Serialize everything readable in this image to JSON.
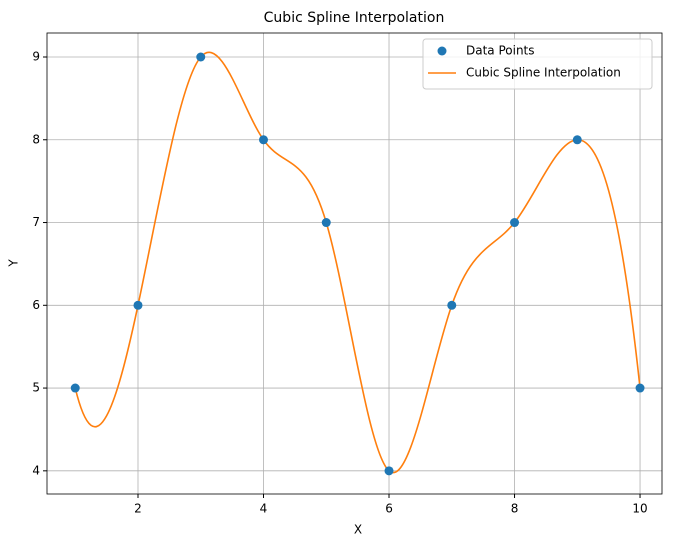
{
  "chart_data": {
    "type": "line",
    "title": "Cubic Spline Interpolation",
    "x_label": "X",
    "y_label": "Y",
    "x": [
      1,
      2,
      3,
      4,
      5,
      6,
      7,
      8,
      9,
      10
    ],
    "series": [
      {
        "name": "Data Points",
        "type": "scatter",
        "color": "#1f77b4",
        "values": [
          5,
          6,
          9,
          8,
          7,
          4,
          6,
          7,
          8,
          5
        ]
      },
      {
        "name": "Cubic Spline Interpolation",
        "type": "line",
        "interpolation": "cubic-spline",
        "color": "#ff7f0e",
        "values": [
          5,
          6,
          9,
          8,
          7,
          4,
          6,
          7,
          8,
          5
        ]
      }
    ],
    "xlim": [
      0.55,
      10.35
    ],
    "xticks": [
      2,
      4,
      6,
      8,
      10
    ],
    "ylim": [
      3.72,
      9.29
    ],
    "yticks": [
      4,
      5,
      6,
      7,
      8,
      9
    ],
    "grid": true,
    "legend": "upper right"
  }
}
